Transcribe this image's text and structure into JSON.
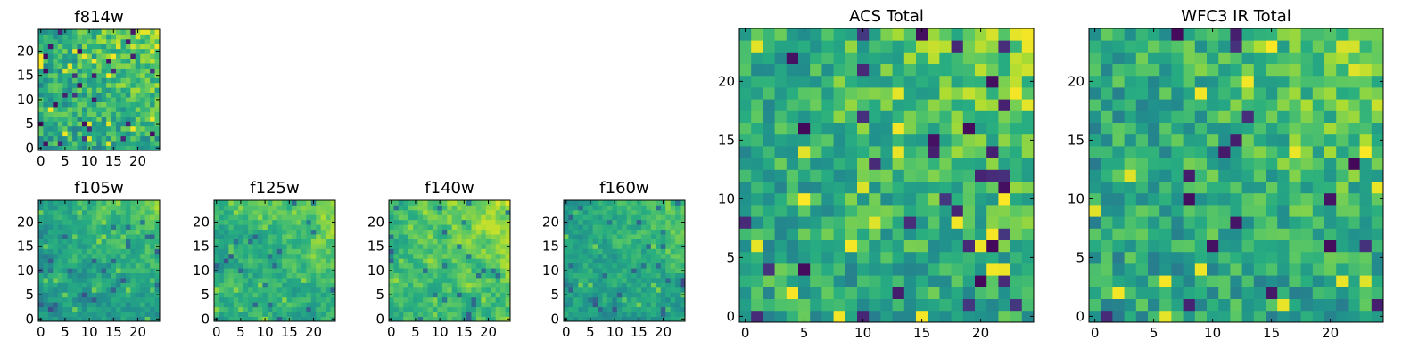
{
  "chart_data": [
    {
      "type": "heatmap",
      "id": "f814w",
      "title": "f814w",
      "grid": [
        25,
        25
      ],
      "colormap": "viridis",
      "vrange": [
        0,
        1
      ],
      "seed": 11,
      "bias": 0.05,
      "smooth": 0,
      "xticks": [
        "0",
        "5",
        "10",
        "15",
        "20"
      ],
      "yticks": [
        "0",
        "5",
        "10",
        "15",
        "20"
      ]
    },
    {
      "type": "heatmap",
      "id": "f105w",
      "title": "f105w",
      "grid": [
        25,
        25
      ],
      "colormap": "viridis",
      "vrange": [
        0,
        1
      ],
      "seed": 23,
      "bias": 0.0,
      "smooth": 1,
      "xticks": [
        "0",
        "5",
        "10",
        "15",
        "20"
      ],
      "yticks": [
        "0",
        "5",
        "10",
        "15",
        "20"
      ]
    },
    {
      "type": "heatmap",
      "id": "f125w",
      "title": "f125w",
      "grid": [
        25,
        25
      ],
      "colormap": "viridis",
      "vrange": [
        0,
        1
      ],
      "seed": 37,
      "bias": 0.05,
      "smooth": 1,
      "xticks": [
        "0",
        "5",
        "10",
        "15",
        "20"
      ],
      "yticks": [
        "0",
        "5",
        "10",
        "15",
        "20"
      ]
    },
    {
      "type": "heatmap",
      "id": "f140w",
      "title": "f140w",
      "grid": [
        25,
        25
      ],
      "colormap": "viridis",
      "vrange": [
        0,
        1
      ],
      "seed": 41,
      "bias": 0.12,
      "smooth": 1,
      "xticks": [
        "0",
        "5",
        "10",
        "15",
        "20"
      ],
      "yticks": [
        "0",
        "5",
        "10",
        "15",
        "20"
      ]
    },
    {
      "type": "heatmap",
      "id": "f160w",
      "title": "f160w",
      "grid": [
        25,
        25
      ],
      "colormap": "viridis",
      "vrange": [
        0,
        1
      ],
      "seed": 53,
      "bias": 0.0,
      "smooth": 1,
      "xticks": [
        "0",
        "5",
        "10",
        "15",
        "20"
      ],
      "yticks": [
        "0",
        "5",
        "10",
        "15",
        "20"
      ]
    },
    {
      "type": "heatmap",
      "id": "acs_total",
      "title": "ACS Total",
      "grid": [
        25,
        25
      ],
      "colormap": "viridis",
      "vrange": [
        0,
        1
      ],
      "seed": 67,
      "bias": 0.05,
      "smooth": 0,
      "xticks": [
        "0",
        "5",
        "10",
        "15",
        "20"
      ],
      "yticks": [
        "0",
        "5",
        "10",
        "15",
        "20"
      ]
    },
    {
      "type": "heatmap",
      "id": "wfc3_ir_total",
      "title": "WFC3 IR Total",
      "grid": [
        25,
        25
      ],
      "colormap": "viridis",
      "vrange": [
        0,
        1
      ],
      "seed": 79,
      "bias": 0.03,
      "smooth": 0,
      "xticks": [
        "0",
        "5",
        "10",
        "15",
        "20"
      ],
      "yticks": [
        "0",
        "5",
        "10",
        "15",
        "20"
      ]
    }
  ]
}
